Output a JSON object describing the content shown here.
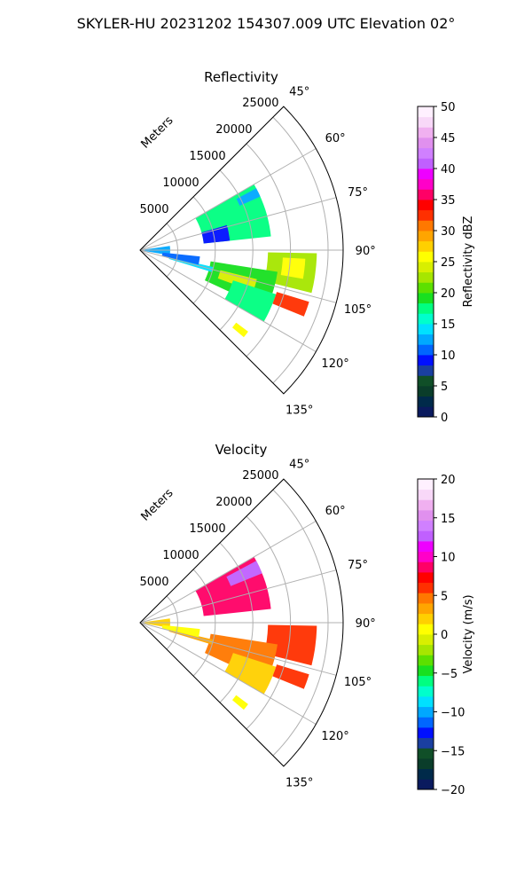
{
  "figure": {
    "suptitle": "SKYLER-HU  20231202  154307.009 UTC Elevation 02°"
  },
  "chart_data": [
    {
      "type": "heatmap",
      "subtype": "radar-ppi-sector",
      "title": "Reflectivity",
      "radial_axis_label": "Meters",
      "radial_ticks": [
        "5000",
        "10000",
        "15000",
        "20000",
        "25000"
      ],
      "radial_tick_values": [
        5000,
        10000,
        15000,
        20000,
        25000
      ],
      "rmax": 27000,
      "azimuth_range": [
        45,
        135
      ],
      "azimuth_ticks": [
        "45°",
        "60°",
        "75°",
        "90°",
        "105°",
        "120°",
        "135°"
      ],
      "azimuth_tick_values": [
        45,
        60,
        75,
        90,
        105,
        120,
        135
      ],
      "grid": true,
      "colorbar": {
        "label": "Reflectivity dBZ",
        "range": [
          0,
          50
        ],
        "ticks": [
          "0",
          "5",
          "10",
          "15",
          "20",
          "25",
          "30",
          "35",
          "40",
          "45",
          "50"
        ],
        "tick_values": [
          0,
          5,
          10,
          15,
          20,
          25,
          30,
          35,
          40,
          45,
          50
        ],
        "colors": [
          "#0a1a5e",
          "#002a4a",
          "#0a3d2a",
          "#104f28",
          "#1a3fa0",
          "#0010ff",
          "#0066ff",
          "#00a8ff",
          "#00e0ff",
          "#00ffcc",
          "#00ff80",
          "#18e020",
          "#5ce000",
          "#a6e600",
          "#d8ef00",
          "#ffff00",
          "#ffd000",
          "#ffa500",
          "#ff7800",
          "#ff3000",
          "#ff0000",
          "#ff0066",
          "#ff00c8",
          "#ee00ff",
          "#c060ff",
          "#d080ff",
          "#e090ee",
          "#f0b0f0",
          "#f8d8f8",
          "#fff0ff"
        ]
      },
      "echoes": [
        {
          "az_range": [
            60,
            84
          ],
          "r_range": [
            8500,
            17500
          ],
          "value": 18
        },
        {
          "az_range": [
            74,
            84
          ],
          "r_range": [
            8500,
            12000
          ],
          "value": 9
        },
        {
          "az_range": [
            62,
            66
          ],
          "r_range": [
            14500,
            17500
          ],
          "value": 13
        },
        {
          "az_range": [
            82,
            100
          ],
          "r_range": [
            0,
            4000
          ],
          "value": 12
        },
        {
          "az_range": [
            91,
            104
          ],
          "r_range": [
            17000,
            23500
          ],
          "value": 22
        },
        {
          "az_range": [
            93,
            100
          ],
          "r_range": [
            19000,
            22000
          ],
          "value": 26
        },
        {
          "az_range": [
            99,
            115
          ],
          "r_range": [
            9500,
            18500
          ],
          "value": 19
        },
        {
          "az_range": [
            104,
            110
          ],
          "r_range": [
            11000,
            16000
          ],
          "value": 24
        },
        {
          "az_range": [
            108,
            120
          ],
          "r_range": [
            13000,
            19000
          ],
          "value": 18
        },
        {
          "az_range": [
            103,
            107
          ],
          "r_range": [
            4000,
            10000
          ],
          "value": 14
        },
        {
          "az_range": [
            107,
            112
          ],
          "r_range": [
            19000,
            23500
          ],
          "value": 33
        },
        {
          "az_range": [
            96,
            104
          ],
          "r_range": [
            3000,
            8000
          ],
          "value": 10
        },
        {
          "az_range": [
            127,
            130
          ],
          "r_range": [
            16000,
            18000
          ],
          "value": 26
        }
      ]
    },
    {
      "type": "heatmap",
      "subtype": "radar-ppi-sector",
      "title": "Velocity",
      "radial_axis_label": "Meters",
      "radial_ticks": [
        "5000",
        "10000",
        "15000",
        "20000",
        "25000"
      ],
      "radial_tick_values": [
        5000,
        10000,
        15000,
        20000,
        25000
      ],
      "rmax": 27000,
      "azimuth_range": [
        45,
        135
      ],
      "azimuth_ticks": [
        "45°",
        "60°",
        "75°",
        "90°",
        "105°",
        "120°",
        "135°"
      ],
      "azimuth_tick_values": [
        45,
        60,
        75,
        90,
        105,
        120,
        135
      ],
      "grid": true,
      "colorbar": {
        "label": "Velocity (m/s)",
        "range": [
          -20,
          20
        ],
        "ticks": [
          "−20",
          "−15",
          "−10",
          "−5",
          "0",
          "5",
          "10",
          "15",
          "20"
        ],
        "tick_values": [
          -20,
          -15,
          -10,
          -5,
          0,
          5,
          10,
          15,
          20
        ],
        "colors": [
          "#0a1a5e",
          "#002a4a",
          "#0a3d2a",
          "#104f28",
          "#1a3fa0",
          "#0010ff",
          "#0066ff",
          "#00a8ff",
          "#00e0ff",
          "#00ffcc",
          "#00ff80",
          "#18e020",
          "#5ce000",
          "#a6e600",
          "#d8ef00",
          "#ffff00",
          "#ffd000",
          "#ffa500",
          "#ff7800",
          "#ff3000",
          "#ff0000",
          "#ff0066",
          "#ff00c8",
          "#ee00ff",
          "#c060ff",
          "#d080ff",
          "#e090ee",
          "#f0b0f0",
          "#f8d8f8",
          "#fff0ff"
        ]
      },
      "echoes": [
        {
          "az_range": [
            60,
            84
          ],
          "r_range": [
            8500,
            17500
          ],
          "value": 8
        },
        {
          "az_range": [
            62,
            68
          ],
          "r_range": [
            13000,
            17500
          ],
          "value": 12
        },
        {
          "az_range": [
            82,
            100
          ],
          "r_range": [
            0,
            4000
          ],
          "value": 2
        },
        {
          "az_range": [
            91,
            104
          ],
          "r_range": [
            17000,
            23500
          ],
          "value": 6
        },
        {
          "az_range": [
            99,
            115
          ],
          "r_range": [
            9500,
            18500
          ],
          "value": 4
        },
        {
          "az_range": [
            108,
            120
          ],
          "r_range": [
            13000,
            19000
          ],
          "value": 2
        },
        {
          "az_range": [
            103,
            107
          ],
          "r_range": [
            4000,
            10000
          ],
          "value": 3
        },
        {
          "az_range": [
            107,
            112
          ],
          "r_range": [
            19000,
            23500
          ],
          "value": 6
        },
        {
          "az_range": [
            96,
            104
          ],
          "r_range": [
            3000,
            8000
          ],
          "value": 1
        },
        {
          "az_range": [
            127,
            130
          ],
          "r_range": [
            16000,
            18000
          ],
          "value": 1
        }
      ]
    }
  ]
}
